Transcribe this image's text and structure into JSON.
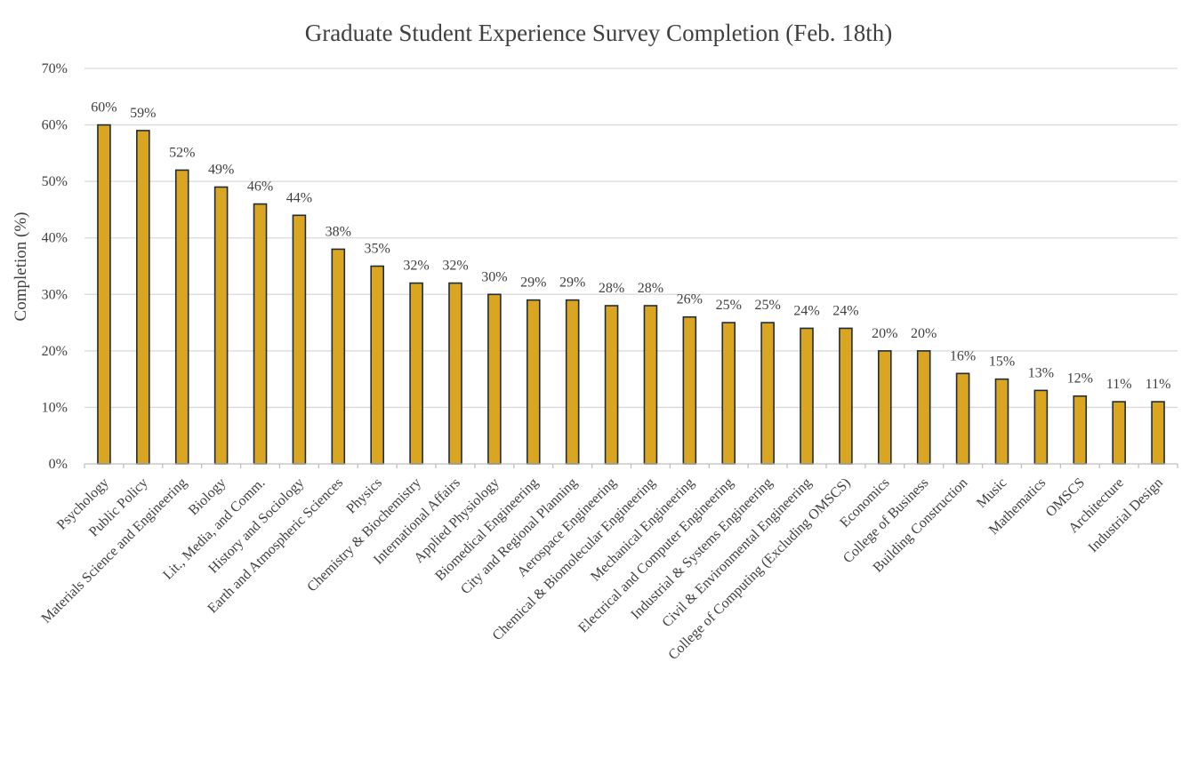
{
  "chart_data": {
    "type": "bar",
    "title": "Graduate Student Experience Survey Completion (Feb. 18th)",
    "xlabel": "",
    "ylabel": "Completion (%)",
    "ylim": [
      0,
      70
    ],
    "yticks": [
      "0%",
      "10%",
      "20%",
      "30%",
      "40%",
      "50%",
      "60%",
      "70%"
    ],
    "grid": true,
    "bar_color": "#DAA520",
    "bar_edge_color": "#1F2D3A",
    "categories": [
      "Psychology",
      "Public Policy",
      "Materials Science and Engineering",
      "Biology",
      "Lit., Media, and Comm.",
      "History and Sociology",
      "Earth and Atmospheric Sciences",
      "Physics",
      "Chemistry & Biochemistry",
      "International Affairs",
      "Applied Physiology",
      "Biomedical Engineering",
      "City and Regional Planning",
      "Aerospace Engineering",
      "Chemical & Biomolecular Engineering",
      "Mechanical Engineering",
      "Electrical and Computer Engineering",
      "Industrial & Systems Engineering",
      "Civil & Environmental Engineering",
      "College of Computing (Excluding OMSCS)",
      "Economics",
      "College of Business",
      "Building Construction",
      "Music",
      "Mathematics",
      "OMSCS",
      "Architecture",
      "Industrial Design"
    ],
    "values": [
      60,
      59,
      52,
      49,
      46,
      44,
      38,
      35,
      32,
      32,
      30,
      29,
      29,
      28,
      28,
      26,
      25,
      25,
      24,
      24,
      20,
      20,
      16,
      15,
      13,
      12,
      11,
      11
    ],
    "data_labels": [
      "60%",
      "59%",
      "52%",
      "49%",
      "46%",
      "44%",
      "38%",
      "35%",
      "32%",
      "32%",
      "30%",
      "29%",
      "29%",
      "28%",
      "28%",
      "26%",
      "25%",
      "25%",
      "24%",
      "24%",
      "20%",
      "20%",
      "16%",
      "15%",
      "13%",
      "12%",
      "11%",
      "11%"
    ]
  }
}
